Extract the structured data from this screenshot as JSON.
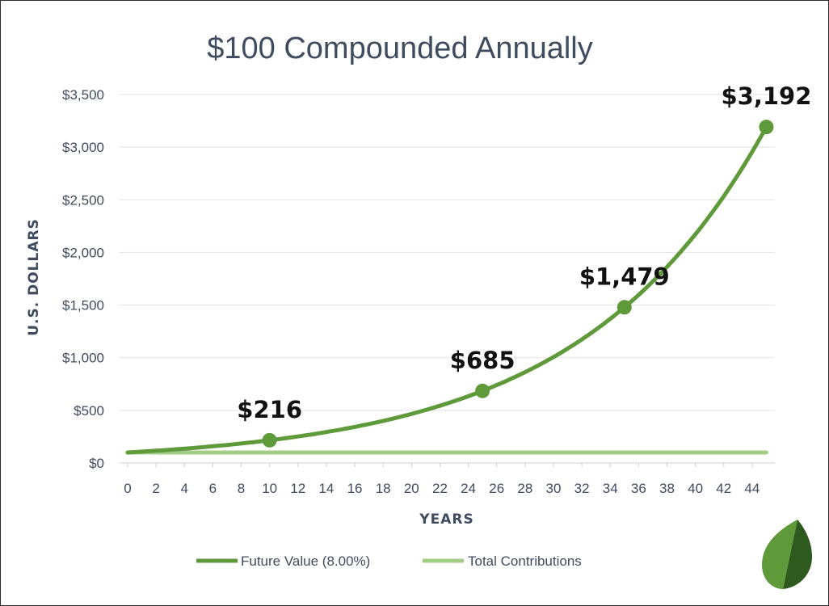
{
  "chart_data": {
    "type": "line",
    "title": "$100 Compounded Annually",
    "xlabel": "YEARS",
    "ylabel": "U.S. DOLLARS",
    "xlim": [
      0,
      45
    ],
    "ylim": [
      0,
      3500
    ],
    "x_ticks": [
      0,
      2,
      4,
      6,
      8,
      10,
      12,
      14,
      16,
      18,
      20,
      22,
      24,
      26,
      28,
      30,
      32,
      34,
      36,
      38,
      40,
      42,
      44
    ],
    "y_ticks": [
      {
        "value": 0,
        "label": "$0"
      },
      {
        "value": 500,
        "label": "$500"
      },
      {
        "value": 1000,
        "label": "$1,000"
      },
      {
        "value": 1500,
        "label": "$1,500"
      },
      {
        "value": 2000,
        "label": "$2,000"
      },
      {
        "value": 2500,
        "label": "$2,500"
      },
      {
        "value": 3000,
        "label": "$3,000"
      },
      {
        "value": 3500,
        "label": "$3,500"
      }
    ],
    "grid": "horizontal",
    "legend_position": "bottom",
    "series": [
      {
        "name": "Future Value (8.00%)",
        "color": "#5e9a3a",
        "principal": 100,
        "rate": 0.08,
        "x_start": 0,
        "x_end": 45
      },
      {
        "name": "Total Contributions",
        "color": "#a3cc87",
        "x": [
          0,
          45
        ],
        "values": [
          100,
          100
        ]
      }
    ],
    "annotations": [
      {
        "x": 10,
        "y": 216,
        "label": "$216"
      },
      {
        "x": 25,
        "y": 685,
        "label": "$685"
      },
      {
        "x": 35,
        "y": 1479,
        "label": "$1,479"
      },
      {
        "x": 45,
        "y": 3192,
        "label": "$3,192"
      }
    ]
  },
  "logo": {
    "name": "leaf-logo",
    "colors": [
      "#5e9a3a",
      "#2f5a1f"
    ]
  }
}
